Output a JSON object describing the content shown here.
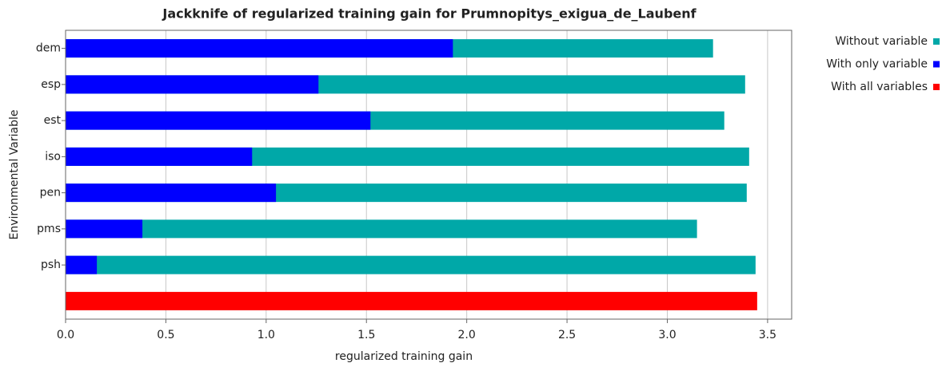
{
  "chart_data": {
    "type": "bar",
    "orientation": "horizontal",
    "title": "Jackknife of regularized training gain for Prumnopitys_exigua_de_Laubenf",
    "xlabel": "regularized training gain",
    "ylabel": "Environmental Variable",
    "categories": [
      "dem",
      "esp",
      "est",
      "iso",
      "pen",
      "pms",
      "psh",
      null
    ],
    "series": [
      {
        "name": "Without variable",
        "color": "#00a8a8",
        "values": [
          3.228,
          3.388,
          3.284,
          3.408,
          3.396,
          3.148,
          3.44,
          null
        ]
      },
      {
        "name": "With only variable",
        "color": "#0000ff",
        "values": [
          1.931,
          1.261,
          1.52,
          0.93,
          1.049,
          0.383,
          0.156,
          null
        ]
      },
      {
        "name": "With all variables",
        "color": "#ff0000",
        "values": [
          null,
          null,
          null,
          null,
          null,
          null,
          null,
          3.448
        ]
      }
    ],
    "xlim": [
      0,
      3.62
    ],
    "xticks": [
      {
        "value": 0,
        "label": "0.0"
      },
      0.5,
      {
        "value": 1,
        "label": "1.0"
      },
      1.5,
      {
        "value": 2,
        "label": "2.0"
      },
      2.5,
      {
        "value": 3,
        "label": "3.0"
      },
      3.5
    ],
    "grid": true,
    "legend": "right"
  }
}
